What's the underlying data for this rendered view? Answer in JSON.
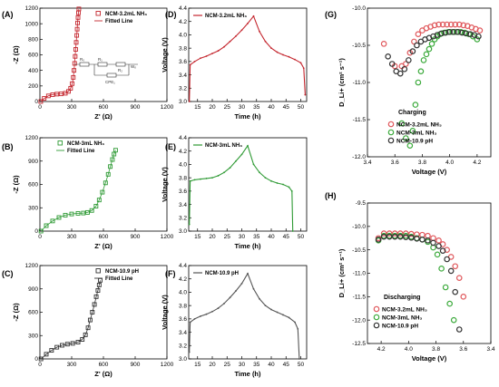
{
  "chart_data": [
    {
      "id": "A",
      "panel_label": "(A)",
      "type": "scatter",
      "xlabel": "Z' (Ω)",
      "ylabel": "-Z (Ω)",
      "xlim": [
        0,
        1200
      ],
      "ylim": [
        0,
        1200
      ],
      "xticks": [
        0,
        300,
        600,
        900,
        1200
      ],
      "yticks": [
        0,
        200,
        400,
        600,
        800,
        1000,
        1200
      ],
      "legend": [
        "NCM-3.2mL NH₃",
        "Fitted Line"
      ],
      "legend_placement": "top-right",
      "color": "#c4262e",
      "circuit_labels": [
        "R₀",
        "R₁",
        "Wₒ",
        "R₂",
        "CPE₁"
      ],
      "series": [
        {
          "name": "NCM-3.2mL NH₃",
          "x": [
            8,
            40,
            80,
            120,
            160,
            200,
            240,
            270,
            290,
            305,
            315,
            322,
            328,
            333,
            338,
            343,
            348,
            352,
            356,
            360,
            364,
            368
          ],
          "y": [
            0,
            40,
            72,
            88,
            95,
            98,
            106,
            130,
            170,
            230,
            310,
            400,
            490,
            580,
            670,
            760,
            850,
            930,
            1010,
            1080,
            1140,
            1190
          ]
        }
      ]
    },
    {
      "id": "B",
      "panel_label": "(B)",
      "type": "scatter",
      "xlabel": "Z' (Ω)",
      "ylabel": "-Z (Ω)",
      "xlim": [
        0,
        1200
      ],
      "ylim": [
        0,
        1200
      ],
      "xticks": [
        0,
        300,
        600,
        900,
        1200
      ],
      "yticks": [
        0,
        300,
        600,
        900,
        1200
      ],
      "legend": [
        "NCM-3mL NH₃",
        "Fitted Line"
      ],
      "legend_placement": "top-left",
      "color": "#2e9a34",
      "series": [
        {
          "name": "NCM-3mL NH₃",
          "x": [
            10,
            60,
            120,
            180,
            240,
            300,
            360,
            410,
            450,
            490,
            530,
            560,
            590,
            620,
            645,
            665,
            685,
            700,
            715
          ],
          "y": [
            0,
            70,
            130,
            175,
            205,
            220,
            228,
            232,
            240,
            265,
            320,
            400,
            500,
            620,
            730,
            830,
            920,
            990,
            1040
          ]
        }
      ]
    },
    {
      "id": "C",
      "panel_label": "(C)",
      "type": "scatter",
      "xlabel": "Z' (Ω)",
      "ylabel": "-Z (Ω)",
      "xlim": [
        0,
        1200
      ],
      "ylim": [
        0,
        1200
      ],
      "xticks": [
        0,
        300,
        600,
        900,
        1200
      ],
      "yticks": [
        0,
        300,
        600,
        900,
        1200
      ],
      "legend": [
        "NCM-10.9 pH",
        "Fitted Line"
      ],
      "legend_placement": "top-right",
      "color": "#333333",
      "series": [
        {
          "name": "NCM-10.9 pH",
          "x": [
            10,
            60,
            110,
            160,
            210,
            260,
            310,
            360,
            400,
            430,
            455,
            475,
            495,
            515,
            532,
            548,
            560,
            570
          ],
          "y": [
            0,
            60,
            110,
            150,
            175,
            190,
            200,
            215,
            250,
            310,
            400,
            500,
            600,
            700,
            800,
            880,
            950,
            1010
          ]
        }
      ]
    },
    {
      "id": "D",
      "panel_label": "(D)",
      "type": "line",
      "xlabel": "Time (h)",
      "ylabel": "Voltage (V)",
      "xlim": [
        12,
        52
      ],
      "ylim": [
        3.0,
        4.4
      ],
      "xticks": [
        15,
        20,
        25,
        30,
        35,
        40,
        45,
        50
      ],
      "yticks": [
        3.0,
        3.2,
        3.4,
        3.6,
        3.8,
        4.0,
        4.2,
        4.4
      ],
      "legend": [
        "NCM-3.2mL NH₃"
      ],
      "legend_placement": "top-left",
      "color": "#c4262e",
      "series": [
        {
          "name": "NCM-3.2mL NH₃",
          "x": [
            12.2,
            12.5,
            14,
            16,
            18,
            20,
            22,
            24,
            26,
            28,
            30,
            32,
            34,
            36,
            38,
            40,
            42,
            44,
            46,
            48,
            50,
            51,
            51.5
          ],
          "y": [
            3.0,
            3.55,
            3.6,
            3.65,
            3.68,
            3.72,
            3.76,
            3.82,
            3.9,
            3.98,
            4.07,
            4.17,
            4.28,
            4.05,
            3.9,
            3.8,
            3.74,
            3.7,
            3.67,
            3.63,
            3.58,
            3.5,
            3.1
          ]
        }
      ]
    },
    {
      "id": "E",
      "panel_label": "(E)",
      "type": "line",
      "xlabel": "Time (h)",
      "ylabel": "Voltage (V)",
      "xlim": [
        12,
        52
      ],
      "ylim": [
        3.0,
        4.4
      ],
      "xticks": [
        15,
        20,
        25,
        30,
        35,
        40,
        45,
        50
      ],
      "yticks": [
        3.0,
        3.2,
        3.4,
        3.6,
        3.8,
        4.0,
        4.2,
        4.4
      ],
      "legend": [
        "NCM-3mL NH₃"
      ],
      "legend_placement": "top-left",
      "color": "#2e9a34",
      "series": [
        {
          "name": "NCM-3mL NH₃",
          "x": [
            12.2,
            12.5,
            14,
            16,
            18,
            20,
            22,
            24,
            26,
            28,
            30,
            32,
            34,
            36,
            38,
            40,
            42,
            44,
            46,
            47,
            47.3
          ],
          "y": [
            3.1,
            3.75,
            3.77,
            3.78,
            3.79,
            3.8,
            3.83,
            3.88,
            3.95,
            4.05,
            4.15,
            4.28,
            4.0,
            3.88,
            3.8,
            3.75,
            3.72,
            3.7,
            3.66,
            3.6,
            3.0
          ]
        }
      ]
    },
    {
      "id": "F",
      "panel_label": "(F)",
      "type": "line",
      "xlabel": "Time (h)",
      "ylabel": "Voltage (V)",
      "xlim": [
        12,
        52
      ],
      "ylim": [
        3.0,
        4.4
      ],
      "xticks": [
        15,
        20,
        25,
        30,
        35,
        40,
        45,
        50
      ],
      "yticks": [
        3.0,
        3.2,
        3.4,
        3.6,
        3.8,
        4.0,
        4.2,
        4.4
      ],
      "legend": [
        "NCM-10.9 pH"
      ],
      "legend_placement": "top-left",
      "color": "#555555",
      "series": [
        {
          "name": "NCM-10.9 pH",
          "x": [
            12.2,
            12.5,
            14,
            16,
            18,
            20,
            22,
            24,
            26,
            28,
            30,
            32,
            34,
            36,
            38,
            40,
            42,
            44,
            46,
            48,
            49,
            49.5
          ],
          "y": [
            3.1,
            3.55,
            3.6,
            3.64,
            3.67,
            3.71,
            3.76,
            3.83,
            3.92,
            4.02,
            4.13,
            4.28,
            4.05,
            3.9,
            3.8,
            3.74,
            3.7,
            3.66,
            3.62,
            3.55,
            3.45,
            3.0
          ]
        }
      ]
    },
    {
      "id": "G",
      "panel_label": "(G)",
      "type": "scatter",
      "xlabel": "Voltage (V)",
      "ylabel": "D_Li+ (cm² s⁻¹)",
      "xlim": [
        3.4,
        4.3
      ],
      "ylim": [
        -12.0,
        -10.0
      ],
      "xticks": [
        3.4,
        3.6,
        3.8,
        4.0,
        4.2
      ],
      "yticks": [
        -12.0,
        -11.5,
        -11.0,
        -10.5,
        -10.0
      ],
      "annotation": "Charging",
      "legend": [
        "NCM-3.2mL NH₃",
        "NCM-3mL NH₃",
        "NCM-10.9 pH"
      ],
      "legend_placement": "bottom-right",
      "series": [
        {
          "name": "NCM-3.2mL NH₃",
          "color": "#e0585c",
          "x": [
            3.52,
            3.6,
            3.65,
            3.68,
            3.71,
            3.74,
            3.77,
            3.8,
            3.83,
            3.86,
            3.89,
            3.92,
            3.95,
            3.98,
            4.01,
            4.04,
            4.07,
            4.1,
            4.13,
            4.16,
            4.19,
            4.22
          ],
          "y": [
            -10.48,
            -10.78,
            -10.78,
            -10.75,
            -10.6,
            -10.45,
            -10.35,
            -10.3,
            -10.27,
            -10.25,
            -10.23,
            -10.22,
            -10.22,
            -10.22,
            -10.22,
            -10.22,
            -10.22,
            -10.23,
            -10.24,
            -10.26,
            -10.28,
            -10.3
          ]
        },
        {
          "name": "NCM-3mL NH₃",
          "color": "#3eab3e",
          "x": [
            3.65,
            3.68,
            3.71,
            3.73,
            3.75,
            3.77,
            3.79,
            3.81,
            3.83,
            3.85,
            3.87,
            3.89,
            3.91,
            3.93,
            3.96,
            3.99,
            4.02,
            4.05,
            4.08,
            4.11,
            4.14,
            4.17,
            4.2
          ],
          "y": [
            -11.55,
            -11.75,
            -11.85,
            -11.65,
            -11.3,
            -11.0,
            -10.85,
            -10.7,
            -10.62,
            -10.55,
            -10.48,
            -10.42,
            -10.38,
            -10.35,
            -10.33,
            -10.32,
            -10.32,
            -10.32,
            -10.32,
            -10.33,
            -10.35,
            -10.38,
            -10.42
          ]
        },
        {
          "name": "NCM-10.9 pH",
          "color": "#333333",
          "x": [
            3.55,
            3.58,
            3.61,
            3.64,
            3.67,
            3.7,
            3.73,
            3.76,
            3.79,
            3.82,
            3.85,
            3.88,
            3.91,
            3.94,
            3.97,
            4.0,
            4.03,
            4.06,
            4.09,
            4.12,
            4.15,
            4.18,
            4.21
          ],
          "y": [
            -10.65,
            -10.75,
            -10.85,
            -10.88,
            -10.82,
            -10.7,
            -10.58,
            -10.5,
            -10.45,
            -10.42,
            -10.4,
            -10.38,
            -10.36,
            -10.34,
            -10.33,
            -10.32,
            -10.32,
            -10.32,
            -10.33,
            -10.34,
            -10.35,
            -10.36,
            -10.38
          ]
        }
      ]
    },
    {
      "id": "H",
      "panel_label": "(H)",
      "type": "scatter",
      "xlabel": "Voltage (V)",
      "ylabel": "D_Li+ (cm² s⁻¹)",
      "xlim": [
        4.3,
        3.4
      ],
      "ylim": [
        -12.5,
        -9.5
      ],
      "xticks": [
        4.2,
        4.0,
        3.8,
        3.6,
        3.4
      ],
      "yticks": [
        -12.5,
        -12.0,
        -11.5,
        -11.0,
        -10.5,
        -10.0,
        -9.5
      ],
      "annotation": "Discharging",
      "legend": [
        "NCM-3.2mL NH₃",
        "NCM-3mL NH₃",
        "NCM-10.9 pH"
      ],
      "legend_placement": "bottom-left",
      "series": [
        {
          "name": "NCM-3.2mL NH₃",
          "color": "#e0585c",
          "x": [
            4.22,
            4.18,
            4.14,
            4.1,
            4.06,
            4.02,
            3.98,
            3.94,
            3.9,
            3.86,
            3.82,
            3.78,
            3.75,
            3.72,
            3.69,
            3.66,
            3.63,
            3.6
          ],
          "y": [
            -10.25,
            -10.15,
            -10.15,
            -10.15,
            -10.15,
            -10.15,
            -10.16,
            -10.17,
            -10.18,
            -10.2,
            -10.25,
            -10.3,
            -10.38,
            -10.5,
            -10.65,
            -10.85,
            -11.1,
            -11.5
          ]
        },
        {
          "name": "NCM-3mL NH₃",
          "color": "#3eab3e",
          "x": [
            4.22,
            4.18,
            4.14,
            4.1,
            4.06,
            4.02,
            3.98,
            3.94,
            3.9,
            3.86,
            3.82,
            3.79,
            3.76,
            3.73,
            3.7,
            3.67
          ],
          "y": [
            -10.3,
            -10.2,
            -10.2,
            -10.2,
            -10.2,
            -10.2,
            -10.22,
            -10.25,
            -10.28,
            -10.33,
            -10.45,
            -10.6,
            -10.9,
            -11.3,
            -11.65,
            -12.0
          ]
        },
        {
          "name": "NCM-10.9 pH",
          "color": "#333333",
          "x": [
            4.22,
            4.18,
            4.14,
            4.1,
            4.06,
            4.02,
            3.98,
            3.94,
            3.9,
            3.86,
            3.82,
            3.78,
            3.75,
            3.72,
            3.69,
            3.66,
            3.63
          ],
          "y": [
            -10.28,
            -10.22,
            -10.22,
            -10.22,
            -10.22,
            -10.23,
            -10.24,
            -10.26,
            -10.28,
            -10.3,
            -10.35,
            -10.42,
            -10.52,
            -10.7,
            -10.95,
            -11.4,
            -12.2
          ]
        }
      ]
    }
  ]
}
